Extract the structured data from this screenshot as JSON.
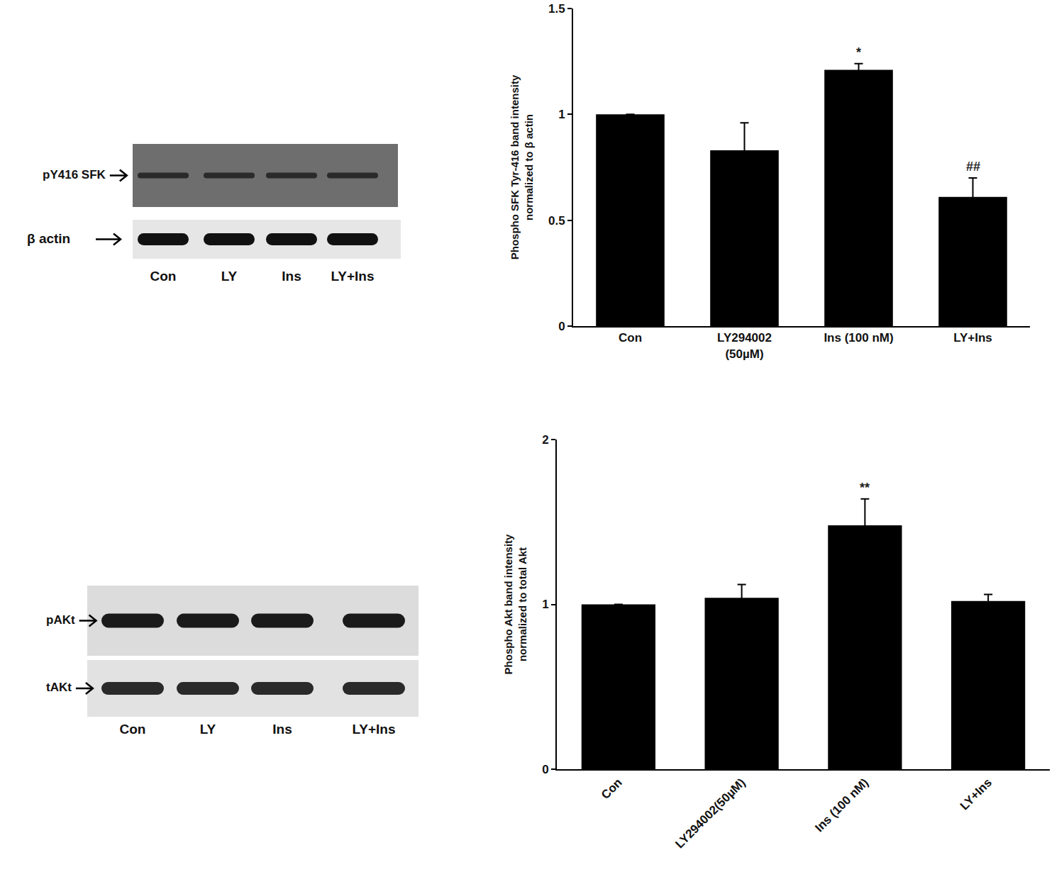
{
  "chart_data": [
    {
      "type": "bar",
      "categories": [
        "Con",
        "LY294002\n(50µM)",
        "Ins (100 nM)",
        "LY+Ins"
      ],
      "values": [
        1,
        0.83,
        1.21,
        0.61
      ],
      "errors": [
        0,
        0.13,
        0.03,
        0.09
      ],
      "color": "#000000",
      "y_label": "Phospho SFK Tyr-416 band intensity\nnormalized to β actin",
      "ylim": [
        0,
        1.5
      ],
      "yticks": [
        0,
        0.5,
        1,
        1.5
      ],
      "grid": false,
      "annotations": [
        {
          "category": "Ins (100 nM)",
          "text": "*"
        },
        {
          "category": "LY+Ins",
          "text": "##"
        }
      ]
    },
    {
      "type": "bar",
      "categories": [
        "Con",
        "LY294002(50µM)",
        "Ins (100 nM)",
        "LY+Ins"
      ],
      "values": [
        1,
        1.04,
        1.48,
        1.02
      ],
      "errors": [
        0,
        0.08,
        0.16,
        0.04
      ],
      "color": "#000000",
      "y_label": "Phospho Akt band intensity\nnormalized to total Akt",
      "ylim": [
        0,
        2
      ],
      "yticks": [
        0,
        1,
        2
      ],
      "grid": false,
      "annotations": [
        {
          "category": "Ins (100 nM)",
          "text": "**"
        }
      ]
    }
  ],
  "blots": [
    {
      "rows": [
        "pY416 SFK",
        "β actin"
      ],
      "lanes": [
        "Con",
        "LY",
        "Ins",
        "LY+Ins"
      ]
    },
    {
      "rows": [
        "pAKt",
        "tAKt"
      ],
      "lanes": [
        "Con",
        "LY",
        "Ins",
        "LY+Ins"
      ]
    }
  ]
}
